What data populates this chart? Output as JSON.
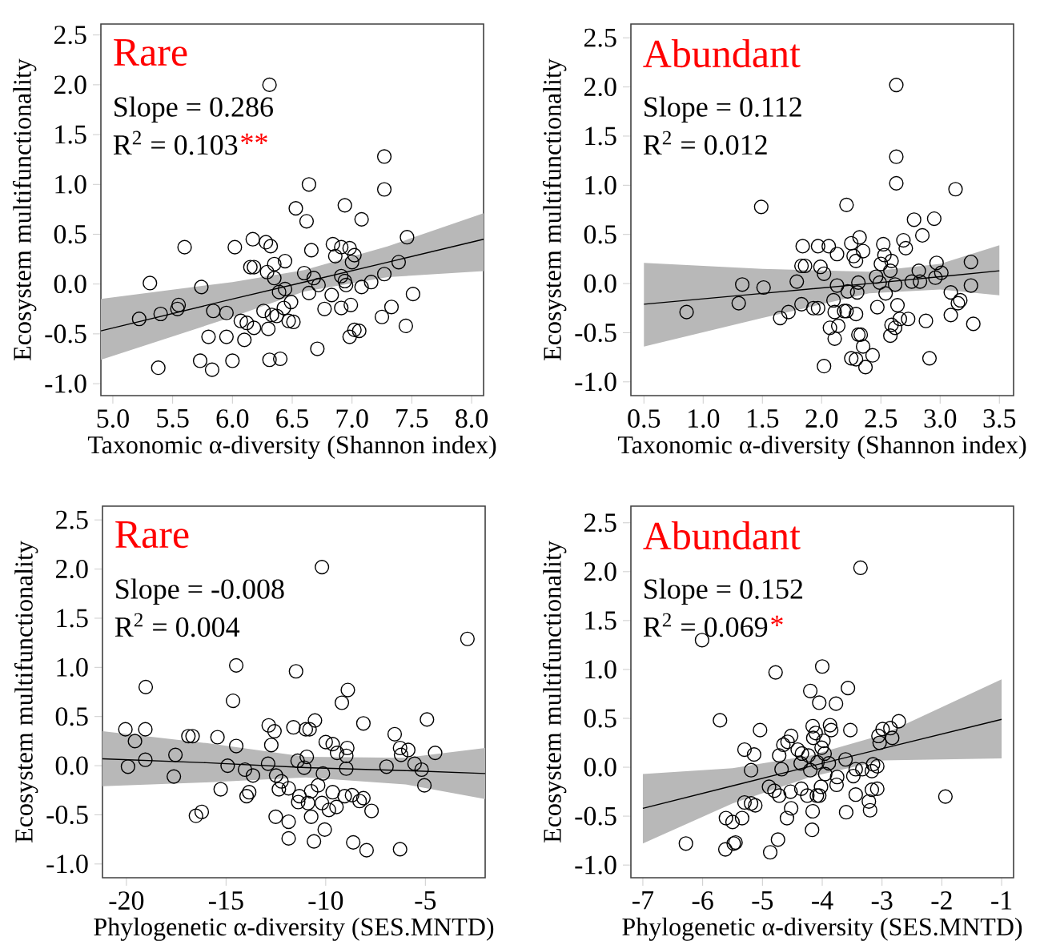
{
  "chart_data": [
    {
      "type": "scatter",
      "title": "Rare",
      "xlabel": "Taxonomic α-diversity (Shannon index)",
      "ylabel": "Ecosystem multifunctionality",
      "annotations": [
        "Slope = 0.286",
        "R$^{2}$ = 0.103",
        "**"
      ],
      "xlim": [
        4.9,
        8.1
      ],
      "ylim": [
        -1.12,
        2.61
      ],
      "xticks": [
        {
          "value": 5,
          "label": "5.0"
        },
        {
          "value": 5.5,
          "label": "5.5"
        },
        {
          "value": 6,
          "label": "6.0"
        },
        {
          "value": 6.5,
          "label": "6.5"
        },
        {
          "value": 7,
          "label": "7.0"
        },
        {
          "value": 7.5,
          "label": "7.5"
        },
        {
          "value": 8,
          "label": "8.0"
        }
      ],
      "yticks": [
        {
          "value": -1,
          "label": "-1.0"
        },
        {
          "value": -0.5,
          "label": "-0.5"
        },
        {
          "value": 0,
          "label": "0.0"
        },
        {
          "value": 0.5,
          "label": "0.5"
        },
        {
          "value": 1,
          "label": "1.0"
        },
        {
          "value": 1.5,
          "label": "1.5"
        },
        {
          "value": 2,
          "label": "2.0"
        },
        {
          "value": 2.5,
          "label": "2.5"
        }
      ],
      "series": [
        {
          "marker": "circle",
          "color": "#000000",
          "x": [
            6.31,
            7.27,
            7.27,
            6.64,
            6.53,
            6.62,
            6.94,
            7.08,
            7.46,
            5.6,
            6.02,
            6.17,
            6.28,
            6.32,
            6.66,
            6.84,
            6.91,
            6.98,
            7.02,
            6.86,
            6.44,
            6.35,
            6.15,
            6.18,
            6.29,
            6.35,
            6.6,
            6.68,
            6.72,
            6.91,
            6.94,
            7.0,
            7.16,
            7.27,
            7.39,
            7.08,
            6.95,
            6.44,
            5.31,
            5.74,
            6.39,
            6.64,
            6.83,
            7.51,
            5.55,
            5.54,
            5.4,
            5.22,
            5.84,
            5.95,
            6.49,
            6.43,
            6.26,
            6.33,
            6.37,
            6.47,
            6.51,
            6.07,
            6.12,
            6.18,
            6.3,
            6.77,
            6.91,
            6.99,
            7.33,
            7.25,
            7.45,
            7.02,
            7.06,
            6.98,
            5.8,
            5.95,
            6.1,
            5.73,
            5.83,
            6.0,
            5.38,
            6.31,
            6.4,
            6.71
          ],
          "values": [
            2.0,
            1.28,
            0.95,
            1.0,
            0.76,
            0.63,
            0.79,
            0.65,
            0.47,
            0.37,
            0.37,
            0.45,
            0.42,
            0.38,
            0.34,
            0.4,
            0.37,
            0.36,
            0.29,
            0.28,
            0.23,
            0.2,
            0.17,
            0.17,
            0.12,
            0.06,
            0.11,
            0.06,
            -0.01,
            0.08,
            0.03,
            0.22,
            0.02,
            0.1,
            0.22,
            -0.03,
            -0.01,
            -0.05,
            0.01,
            -0.03,
            -0.08,
            -0.09,
            -0.11,
            -0.1,
            -0.21,
            -0.25,
            -0.3,
            -0.35,
            -0.27,
            -0.29,
            -0.18,
            -0.24,
            -0.27,
            -0.31,
            -0.32,
            -0.37,
            -0.38,
            -0.37,
            -0.39,
            -0.44,
            -0.45,
            -0.25,
            -0.24,
            -0.21,
            -0.23,
            -0.33,
            -0.42,
            -0.46,
            -0.47,
            -0.53,
            -0.53,
            -0.53,
            -0.56,
            -0.77,
            -0.86,
            -0.77,
            -0.84,
            -0.76,
            -0.75,
            -0.65
          ]
        },
        {
          "type": "line",
          "color": "#000000",
          "x": [
            4.9,
            6,
            6.6,
            7.3,
            8.1
          ],
          "values": [
            -0.47,
            -0.15,
            0.02,
            0.22,
            0.45
          ],
          "lower": [
            -0.76,
            -0.33,
            -0.075,
            0.07,
            0.13
          ],
          "upper": [
            -0.15,
            0.02,
            0.14,
            0.38,
            0.71
          ]
        }
      ]
    },
    {
      "type": "scatter",
      "title": "Abundant",
      "xlabel": "Taxonomic α-diversity (Shannon index)",
      "ylabel": "Ecosystem multifunctionality",
      "annotations": [
        "Slope = 0.112",
        "R$^{2}$ = 0.012"
      ],
      "xlim": [
        0.39,
        3.62
      ],
      "ylim": [
        -1.14,
        2.64
      ],
      "xticks": [
        {
          "value": 0.5,
          "label": "0.5"
        },
        {
          "value": 1,
          "label": "1.0"
        },
        {
          "value": 1.5,
          "label": "1.5"
        },
        {
          "value": 2,
          "label": "2.0"
        },
        {
          "value": 2.5,
          "label": "2.5"
        },
        {
          "value": 3,
          "label": "3.0"
        },
        {
          "value": 3.5,
          "label": "3.5"
        }
      ],
      "yticks": [
        {
          "value": -1,
          "label": "-1.0"
        },
        {
          "value": -0.5,
          "label": "-0.5"
        },
        {
          "value": 0,
          "label": "0.0"
        },
        {
          "value": 0.5,
          "label": "0.5"
        },
        {
          "value": 1,
          "label": "1.0"
        },
        {
          "value": 1.5,
          "label": "1.5"
        },
        {
          "value": 2,
          "label": "2.0"
        },
        {
          "value": 2.5,
          "label": "2.5"
        }
      ],
      "series": [
        {
          "marker": "circle",
          "color": "#000000",
          "x": [
            2.63,
            2.63,
            2.63,
            3.13,
            1.49,
            2.21,
            2.78,
            2.95,
            2.85,
            2.32,
            2.25,
            2.52,
            2.69,
            2.71,
            1.84,
            1.97,
            2.06,
            2.13,
            2.35,
            2.29,
            2.27,
            2.53,
            2.59,
            1.83,
            1.86,
            1.99,
            2.02,
            2.46,
            2.5,
            2.58,
            2.96,
            2.97,
            3.01,
            3.26,
            2.82,
            1.79,
            2.13,
            2.31,
            2.49,
            2.62,
            2.76,
            2.83,
            1.33,
            1.51,
            3.26,
            2.22,
            2.3,
            2.54,
            3.09,
            2.1,
            3.15,
            3.17,
            1.3,
            1.83,
            1.93,
            1.97,
            2.19,
            2.21,
            2.11,
            2.47,
            2.64,
            0.86,
            1.72,
            1.65,
            2.29,
            2.66,
            2.73,
            2.88,
            3.09,
            3.28,
            2.59,
            2.62,
            2.58,
            2.07,
            2.14,
            2.11,
            2.31,
            2.33,
            2.35,
            2.25,
            2.29,
            2.43,
            2.37,
            2.02,
            2.91
          ],
          "values": [
            2.02,
            1.29,
            1.02,
            0.96,
            0.78,
            0.8,
            0.65,
            0.66,
            0.49,
            0.47,
            0.41,
            0.4,
            0.44,
            0.36,
            0.38,
            0.38,
            0.38,
            0.3,
            0.33,
            0.23,
            0.28,
            0.29,
            0.23,
            0.18,
            0.18,
            0.17,
            0.1,
            0.07,
            0.2,
            0.13,
            0.06,
            0.21,
            0.11,
            0.22,
            0.13,
            0.02,
            -0.02,
            0.01,
            0.01,
            -0.01,
            0.02,
            0.02,
            -0.01,
            -0.04,
            -0.02,
            -0.08,
            -0.09,
            -0.1,
            -0.09,
            -0.17,
            -0.2,
            -0.17,
            -0.2,
            -0.21,
            -0.25,
            -0.25,
            -0.28,
            -0.28,
            -0.29,
            -0.24,
            -0.22,
            -0.29,
            -0.29,
            -0.35,
            -0.31,
            -0.36,
            -0.36,
            -0.38,
            -0.32,
            -0.41,
            -0.42,
            -0.45,
            -0.53,
            -0.45,
            -0.43,
            -0.56,
            -0.52,
            -0.52,
            -0.64,
            -0.76,
            -0.77,
            -0.73,
            -0.85,
            -0.84,
            -0.76
          ]
        },
        {
          "type": "line",
          "color": "#000000",
          "x": [
            0.5,
            1.5,
            2.4,
            3.0,
            3.5
          ],
          "values": [
            -0.21,
            -0.1,
            0.0,
            0.07,
            0.13
          ],
          "lower": [
            -0.64,
            -0.35,
            -0.1,
            -0.06,
            -0.12
          ],
          "upper": [
            0.21,
            0.15,
            0.12,
            0.2,
            0.39
          ]
        }
      ]
    },
    {
      "type": "scatter",
      "title": "Rare",
      "xlabel": "Phylogenetic α-diversity (SES.MNTD)",
      "ylabel": "Ecosystem multifunctionality",
      "annotations": [
        "Slope = -0.008",
        "R$^{2}$ = 0.004"
      ],
      "xlim": [
        -21.2,
        -2.0
      ],
      "ylim": [
        -1.14,
        2.64
      ],
      "xticks": [
        -20,
        -15,
        -10,
        -5
      ],
      "yticks": [
        {
          "value": -1,
          "label": "-1.0"
        },
        {
          "value": -0.5,
          "label": "-0.5"
        },
        {
          "value": 0,
          "label": "0.0"
        },
        {
          "value": 0.5,
          "label": "0.5"
        },
        {
          "value": 1,
          "label": "1.0"
        },
        {
          "value": 1.5,
          "label": "1.5"
        },
        {
          "value": 2,
          "label": "2.0"
        },
        {
          "value": 2.5,
          "label": "2.5"
        }
      ],
      "series": [
        {
          "marker": "circle",
          "color": "#000000",
          "x": [
            -10.19,
            -2.89,
            -14.49,
            -11.49,
            -19.03,
            -8.89,
            -14.65,
            -9.19,
            -4.92,
            -20.05,
            -19.05,
            -12.86,
            -12.57,
            -11.62,
            -11.0,
            -10.81,
            -10.54,
            -8.11,
            -19.57,
            -16.89,
            -16.68,
            -15.43,
            -14.49,
            -12.73,
            -10.0,
            -9.65,
            -8.92,
            -8.97,
            -9.43,
            -6.54,
            -6.27,
            -5.86,
            -4.51,
            -6.22,
            -11.41,
            -10.95,
            -19.92,
            -19.05,
            -17.54,
            -14.92,
            -12.89,
            -11.08,
            -8.97,
            -6.95,
            -5.54,
            -5.19,
            -17.62,
            -14.05,
            -13.65,
            -12.49,
            -10.14,
            -12.22,
            -12.35,
            -11.86,
            -15.27,
            -13.84,
            -13.97,
            -11.32,
            -10.73,
            -10.38,
            -9.65,
            -9.05,
            -8.68,
            -8.3,
            -8.11,
            -11.38,
            -10.89,
            -10.19,
            -9.84,
            -9.46,
            -7.7,
            -5.05,
            -16.51,
            -16.22,
            -12.51,
            -11.86,
            -10.73,
            -10.05,
            -11.86,
            -10.59,
            -8.62,
            -7.95,
            -6.27
          ],
          "values": [
            2.02,
            1.29,
            1.02,
            0.96,
            0.8,
            0.77,
            0.66,
            0.64,
            0.47,
            0.37,
            0.37,
            0.41,
            0.35,
            0.39,
            0.37,
            0.37,
            0.46,
            0.43,
            0.25,
            0.3,
            0.3,
            0.29,
            0.2,
            0.21,
            0.24,
            0.22,
            0.18,
            0.1,
            0.13,
            0.32,
            0.18,
            0.16,
            0.13,
            0.11,
            0.05,
            0.09,
            -0.01,
            0.06,
            0.11,
            0.0,
            0.02,
            -0.02,
            -0.03,
            -0.01,
            0.02,
            -0.04,
            -0.11,
            -0.04,
            -0.1,
            -0.1,
            -0.08,
            -0.16,
            -0.24,
            -0.23,
            -0.24,
            -0.27,
            -0.31,
            -0.31,
            -0.26,
            -0.2,
            -0.27,
            -0.31,
            -0.3,
            -0.36,
            -0.33,
            -0.37,
            -0.38,
            -0.38,
            -0.45,
            -0.42,
            -0.46,
            -0.2,
            -0.51,
            -0.47,
            -0.52,
            -0.57,
            -0.52,
            -0.65,
            -0.74,
            -0.77,
            -0.78,
            -0.86,
            -0.85
          ]
        },
        {
          "type": "line",
          "color": "#000000",
          "x": [
            -21.2,
            -16,
            -11,
            -6,
            -2
          ],
          "values": [
            0.07,
            0.03,
            -0.02,
            -0.05,
            -0.08
          ],
          "lower": [
            -0.21,
            -0.17,
            -0.12,
            -0.19,
            -0.34
          ],
          "upper": [
            0.35,
            0.23,
            0.09,
            0.08,
            0.18
          ]
        }
      ]
    },
    {
      "type": "scatter",
      "title": "Abundant",
      "xlabel": "Phylogenetic α-diversity (SES.MNTD)",
      "ylabel": "Ecosystem multifunctionality",
      "annotations": [
        "Slope = 0.152",
        "R$^{2}$ = 0.069",
        "*"
      ],
      "xlim": [
        -7.2,
        -0.8
      ],
      "ylim": [
        -1.13,
        2.67
      ],
      "xticks": [
        -7,
        -6,
        -5,
        -4,
        -3,
        -2,
        -1
      ],
      "yticks": [
        {
          "value": -1,
          "label": "-1.0"
        },
        {
          "value": -0.5,
          "label": "-0.5"
        },
        {
          "value": 0,
          "label": "0.0"
        },
        {
          "value": 0.5,
          "label": "0.5"
        },
        {
          "value": 1,
          "label": "1.0"
        },
        {
          "value": 1.5,
          "label": "1.5"
        },
        {
          "value": 2,
          "label": "2.0"
        },
        {
          "value": 2.5,
          "label": "2.5"
        }
      ],
      "series": [
        {
          "marker": "circle",
          "color": "#000000",
          "x": [
            -3.36,
            -6.01,
            -4.78,
            -4.0,
            -4.2,
            -3.57,
            -4.05,
            -3.77,
            -5.71,
            -5.04,
            -5.3,
            -5.14,
            -5.19,
            -3.87,
            -3.85,
            -3.53,
            -2.72,
            -2.86,
            -2.99,
            -3.06,
            -2.83,
            -3.04,
            -4.16,
            -4.11,
            -4.15,
            -3.98,
            -4.52,
            -4.65,
            -4.58,
            -4.41,
            -4.34,
            -4.23,
            -4.72,
            -4.01,
            -3.96,
            -4.08,
            -3.89,
            -4.36,
            -3.61,
            -4.68,
            -4.2,
            -3.95,
            -3.44,
            -3.33,
            -3.15,
            -3.08,
            -3.17,
            -3.75,
            -3.48,
            -3.76,
            -4.02,
            -4.89,
            -4.8,
            -4.72,
            -4.35,
            -4.53,
            -4.25,
            -4.09,
            -4.05,
            -3.44,
            -3.17,
            -3.08,
            -3.22,
            -5.3,
            -5.19,
            -5.12,
            -1.94,
            -4.52,
            -4.59,
            -4.16,
            -3.6,
            -3.2,
            -5.61,
            -5.5,
            -5.34,
            -4.17,
            -4.74,
            -6.28,
            -5.62,
            -5.48,
            -5.45,
            -4.87
          ],
          "values": [
            2.04,
            1.3,
            0.97,
            1.03,
            0.78,
            0.81,
            0.66,
            0.65,
            0.48,
            0.38,
            0.18,
            0.13,
            -0.03,
            0.43,
            0.38,
            0.38,
            0.47,
            0.4,
            0.39,
            0.32,
            0.3,
            0.25,
            0.42,
            0.35,
            0.3,
            0.27,
            0.32,
            0.23,
            0.26,
            0.18,
            0.14,
            0.12,
            0.12,
            0.2,
            0.14,
            0.05,
            0.04,
            0.04,
            0.08,
            -0.02,
            -0.03,
            -0.07,
            -0.02,
            -0.02,
            0.03,
            0.01,
            -0.04,
            -0.1,
            -0.09,
            -0.18,
            -0.2,
            -0.2,
            -0.24,
            -0.29,
            -0.22,
            -0.25,
            -0.29,
            -0.29,
            -0.29,
            -0.28,
            -0.23,
            -0.22,
            -0.35,
            -0.36,
            -0.37,
            -0.39,
            -0.3,
            -0.42,
            -0.52,
            -0.45,
            -0.46,
            -0.44,
            -0.52,
            -0.56,
            -0.52,
            -0.64,
            -0.74,
            -0.78,
            -0.84,
            -0.78,
            -0.77,
            -0.87
          ]
        },
        {
          "type": "line",
          "color": "#000000",
          "x": [
            -7,
            -5.5,
            -4.2,
            -3,
            -1
          ],
          "values": [
            -0.42,
            -0.19,
            0.01,
            0.19,
            0.49
          ],
          "lower": [
            -0.78,
            -0.37,
            -0.1,
            0.07,
            0.09
          ],
          "upper": [
            -0.07,
            -0.01,
            0.12,
            0.33,
            0.9
          ]
        }
      ]
    }
  ]
}
